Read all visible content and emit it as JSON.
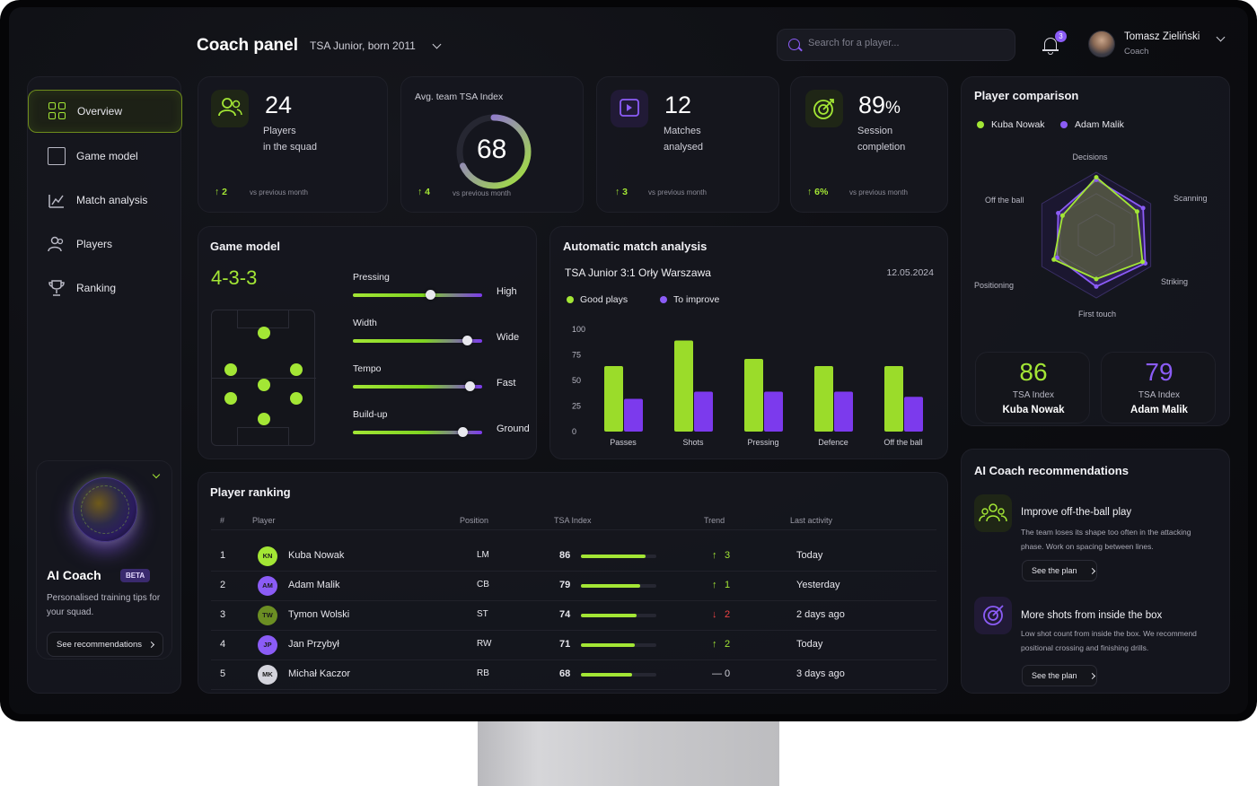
{
  "header": {
    "title": "Coach panel",
    "team": "TSA Junior, born 2011",
    "search_placeholder": "Search for a player...",
    "notifications": "3",
    "user_name": "Tomasz Zieliński",
    "user_role": "Coach"
  },
  "sidebar": {
    "items": [
      {
        "label": "Overview",
        "icon": "overview-grid-icon"
      },
      {
        "label": "Game model",
        "icon": "game-model-icon"
      },
      {
        "label": "Match analysis",
        "icon": "chart-icon"
      },
      {
        "label": "Players",
        "icon": "players-icon"
      },
      {
        "label": "Ranking",
        "icon": "trophy-icon"
      }
    ],
    "ai_card": {
      "title": "AI Coach",
      "badge": "BETA",
      "desc": "Personalised training tips for your squad.",
      "button": "See recommendations"
    }
  },
  "stats": {
    "players": {
      "value": "24",
      "label1": "Players",
      "label2": "in the squad",
      "trend": "2",
      "vs": "vs previous month"
    },
    "tsa": {
      "label": "Avg. team TSA Index",
      "value": "68",
      "fraction": 0.68,
      "trend": "4",
      "vs": "vs previous month"
    },
    "matches": {
      "value": "12",
      "label1": "Matches",
      "label2": "analysed",
      "trend": "3",
      "vs": "vs previous month"
    },
    "session": {
      "value": "89",
      "unit": "%",
      "label1": "Session",
      "label2": "completion",
      "trend": "6%",
      "vs": "vs previous month"
    }
  },
  "game_model": {
    "title": "Game model",
    "formation": "4-3-3",
    "sliders": [
      {
        "label": "Pressing",
        "right": "High",
        "value": 0.6
      },
      {
        "label": "Width",
        "right": "Wide",
        "value": 0.88
      },
      {
        "label": "Tempo",
        "right": "Fast",
        "value": 0.9
      },
      {
        "label": "Build-up",
        "right": "Ground",
        "value": 0.85
      }
    ]
  },
  "match_analysis": {
    "title": "Automatic match analysis",
    "match": "TSA Junior 3:1 Orły Warszawa",
    "date": "12.05.2024",
    "legend_good": "Good plays",
    "legend_improve": "To improve"
  },
  "chart_data": {
    "type": "bar",
    "categories": [
      "Passes",
      "Shots",
      "Pressing",
      "Defence",
      "Off the ball"
    ],
    "series": [
      {
        "name": "Good plays",
        "values": [
          64,
          89,
          71,
          64,
          64
        ],
        "color": "#9bdc2a"
      },
      {
        "name": "To improve",
        "values": [
          32,
          39,
          39,
          39,
          34
        ],
        "color": "#7c3aed"
      }
    ],
    "yticks": [
      "0",
      "25",
      "50",
      "75",
      "100"
    ],
    "ylim": [
      0,
      100
    ]
  },
  "comparison": {
    "title": "Player comparison",
    "players": [
      {
        "name": "Kuba Nowak",
        "color": "#a3e635",
        "index": "86",
        "index_label": "TSA Index"
      },
      {
        "name": "Adam Malik",
        "color": "#8b5cf6",
        "index": "79",
        "index_label": "TSA Index"
      }
    ],
    "axes": [
      "Decisions",
      "Scanning",
      "Striking",
      "First touch",
      "Positioning",
      "Off the ball"
    ],
    "values_a": [
      0.92,
      0.75,
      0.85,
      0.7,
      0.78,
      0.62
    ],
    "values_b": [
      0.88,
      0.86,
      0.9,
      0.82,
      0.72,
      0.7
    ]
  },
  "ranking": {
    "title": "Player ranking",
    "headers": [
      "#",
      "Player",
      "Position",
      "TSA Index",
      "Trend",
      "Last activity"
    ],
    "rows": [
      {
        "rank": "1",
        "initials": "KN",
        "name": "Kuba Nowak",
        "pos": "LM",
        "index": "86",
        "trend": "3",
        "dir": "up",
        "last": "Today",
        "color": "#a3e635"
      },
      {
        "rank": "2",
        "initials": "AM",
        "name": "Adam Malik",
        "pos": "CB",
        "index": "79",
        "trend": "1",
        "dir": "up",
        "last": "Yesterday",
        "color": "#8b5cf6"
      },
      {
        "rank": "3",
        "initials": "TW",
        "name": "Tymon Wolski",
        "pos": "ST",
        "index": "74",
        "trend": "2",
        "dir": "down",
        "last": "2 days ago",
        "color": "#6b8e23"
      },
      {
        "rank": "4",
        "initials": "JP",
        "name": "Jan Przybył",
        "pos": "RW",
        "index": "71",
        "trend": "2",
        "dir": "up",
        "last": "Today",
        "color": "#8b5cf6"
      },
      {
        "rank": "5",
        "initials": "MK",
        "name": "Michał Kaczor",
        "pos": "RB",
        "index": "68",
        "trend": "0",
        "dir": "flat",
        "last": "3 days ago",
        "color": "#d4d4dc"
      }
    ]
  },
  "recommendations": {
    "title": "AI Coach recommendations",
    "items": [
      {
        "title": "Improve off-the-ball play",
        "desc": "The team loses its shape too often in the attacking phase. Work on spacing between lines.",
        "button": "See the plan"
      },
      {
        "title": "More shots from inside the box",
        "desc": "Low shot count from inside the box. We recommend positional crossing and finishing drills.",
        "button": "See the plan"
      }
    ]
  }
}
